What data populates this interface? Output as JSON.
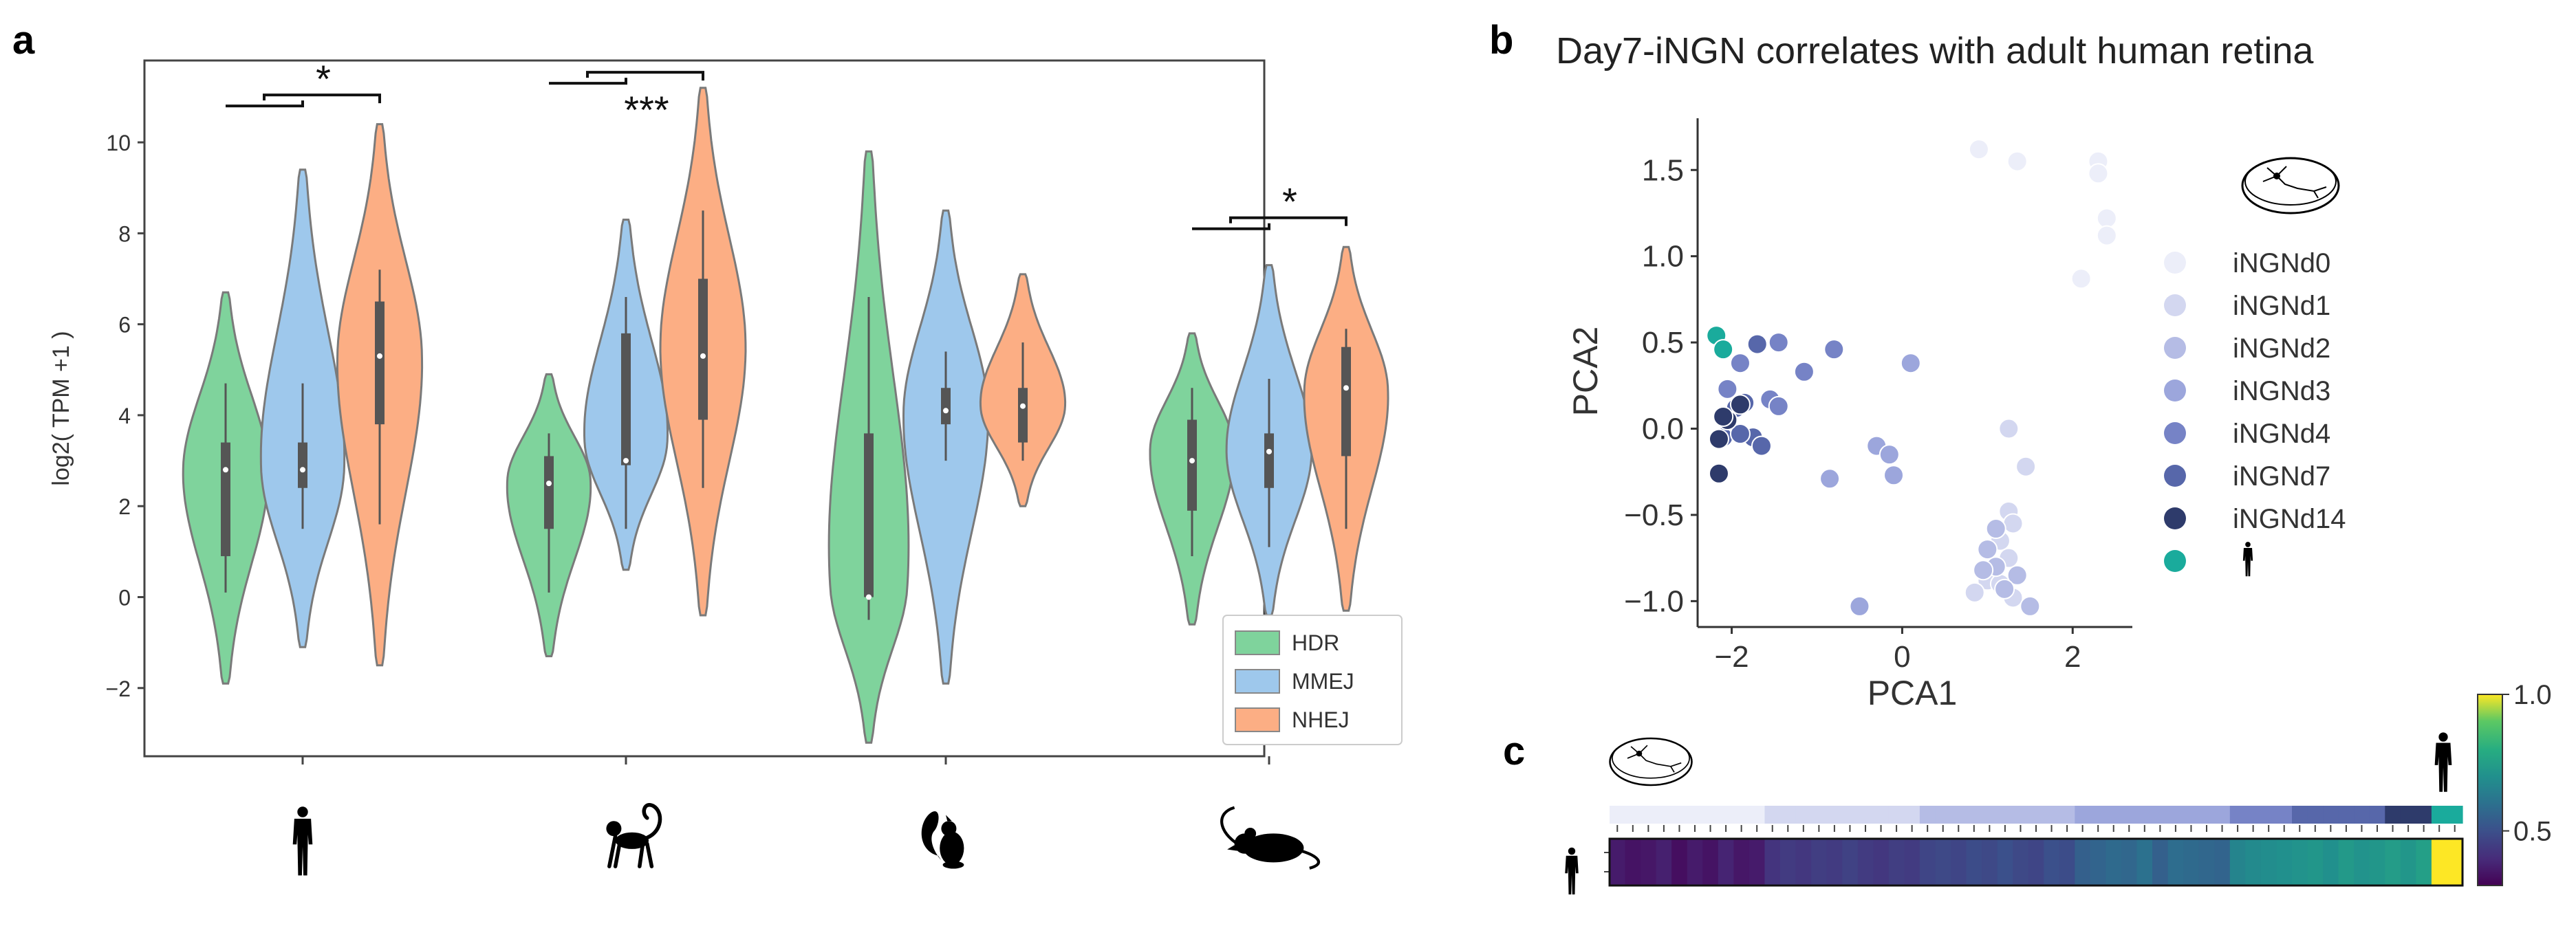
{
  "panels": {
    "a": "a",
    "b": "b",
    "c": "c"
  },
  "chart_data": [
    {
      "type": "violin",
      "panel": "a",
      "ylabel": "log2( TPM +1 )",
      "ylim": [
        -3.5,
        11.8
      ],
      "yticks": [
        -2,
        0,
        2,
        4,
        6,
        8,
        10
      ],
      "groups": [
        "human-icon",
        "monkey-icon",
        "squirrel-icon",
        "mouse-icon"
      ],
      "legend": [
        {
          "label": "HDR",
          "color": "#7fd39c"
        },
        {
          "label": "MMEJ",
          "color": "#9ec8ec"
        },
        {
          "label": "NHEJ",
          "color": "#fcae84"
        }
      ],
      "series": [
        {
          "name": "HDR",
          "values": [
            {
              "min": -1.9,
              "q1": 0.9,
              "median": 2.8,
              "q3": 3.4,
              "wlo": 0.1,
              "whi": 4.7,
              "max": 6.7,
              "mode": 2.8
            },
            {
              "min": -1.3,
              "q1": 1.5,
              "median": 2.5,
              "q3": 3.1,
              "wlo": 0.1,
              "whi": 3.6,
              "max": 4.9,
              "mode": 2.6
            },
            {
              "min": -3.2,
              "q1": 0.0,
              "median": 0.0,
              "q3": 3.6,
              "wlo": -0.5,
              "whi": 6.6,
              "max": 9.8,
              "mode": 0.2
            },
            {
              "min": -0.6,
              "q1": 1.9,
              "median": 3.0,
              "q3": 3.9,
              "wlo": 0.9,
              "whi": 4.6,
              "max": 5.8,
              "mode": 3.3
            }
          ]
        },
        {
          "name": "MMEJ",
          "values": [
            {
              "min": -1.1,
              "q1": 2.4,
              "median": 2.8,
              "q3": 3.4,
              "wlo": 1.5,
              "whi": 4.7,
              "max": 9.4,
              "mode": 2.8
            },
            {
              "min": 0.6,
              "q1": 2.9,
              "median": 3.0,
              "q3": 5.8,
              "wlo": 1.5,
              "whi": 6.6,
              "max": 8.3,
              "mode": 3.4
            },
            {
              "min": -1.9,
              "q1": 3.8,
              "median": 4.1,
              "q3": 4.6,
              "wlo": 3.0,
              "whi": 5.4,
              "max": 8.5,
              "mode": 4.1
            },
            {
              "min": -0.4,
              "q1": 2.4,
              "median": 3.2,
              "q3": 3.6,
              "wlo": 1.1,
              "whi": 4.8,
              "max": 7.3,
              "mode": 3.2
            }
          ]
        },
        {
          "name": "NHEJ",
          "values": [
            {
              "min": -1.5,
              "q1": 3.8,
              "median": 5.3,
              "q3": 6.5,
              "wlo": 1.6,
              "whi": 7.2,
              "max": 10.4,
              "mode": 5.3
            },
            {
              "min": -0.4,
              "q1": 3.9,
              "median": 5.3,
              "q3": 7.0,
              "wlo": 2.4,
              "whi": 8.5,
              "max": 11.2,
              "mode": 5.5
            },
            {
              "min": 2.0,
              "q1": 3.4,
              "median": 4.2,
              "q3": 4.6,
              "wlo": 3.0,
              "whi": 5.6,
              "max": 7.1,
              "mode": 4.2
            },
            {
              "min": -0.3,
              "q1": 3.1,
              "median": 4.6,
              "q3": 5.5,
              "wlo": 1.5,
              "whi": 5.9,
              "max": 7.7,
              "mode": 4.6
            }
          ]
        }
      ],
      "significance": [
        {
          "group": 0,
          "label": "*",
          "y": 10.8
        },
        {
          "group": 1,
          "label": "***",
          "y": 11.3
        },
        {
          "group": 3,
          "label": "*",
          "y": 8.1
        }
      ]
    },
    {
      "type": "scatter",
      "panel": "b",
      "title": "Day7-iNGN correlates with adult human retina",
      "xlabel": "PCA1",
      "ylabel": "PCA2",
      "xlim": [
        -2.4,
        2.7
      ],
      "ylim": [
        -1.15,
        1.8
      ],
      "xticks": [
        -2,
        0,
        2
      ],
      "yticks": [
        -1.0,
        -0.5,
        0.0,
        0.5,
        1.0,
        1.5
      ],
      "legend_icon": "dish-icon",
      "series": [
        {
          "name": "iNGNd0",
          "color": "#eceef9",
          "points": [
            [
              0.9,
              1.62
            ],
            [
              1.35,
              1.55
            ],
            [
              2.3,
              1.55
            ],
            [
              2.3,
              1.48
            ],
            [
              2.4,
              1.22
            ],
            [
              2.4,
              1.12
            ],
            [
              2.1,
              0.87
            ]
          ]
        },
        {
          "name": "iNGNd1",
          "color": "#d3d7f0",
          "points": [
            [
              1.25,
              -0.48
            ],
            [
              1.3,
              -0.55
            ],
            [
              1.15,
              -0.65
            ],
            [
              1.25,
              -0.75
            ],
            [
              1.0,
              -0.88
            ],
            [
              1.15,
              -0.9
            ],
            [
              0.85,
              -0.95
            ],
            [
              1.3,
              -0.98
            ],
            [
              1.45,
              -0.22
            ],
            [
              1.25,
              0.0
            ]
          ]
        },
        {
          "name": "iNGNd2",
          "color": "#b5bce5",
          "points": [
            [
              1.1,
              -0.58
            ],
            [
              1.0,
              -0.7
            ],
            [
              1.1,
              -0.8
            ],
            [
              1.35,
              -0.85
            ],
            [
              1.2,
              -0.93
            ],
            [
              1.5,
              -1.03
            ],
            [
              0.95,
              -0.82
            ]
          ]
        },
        {
          "name": "iNGNd3",
          "color": "#9ca6dc",
          "points": [
            [
              -0.3,
              -0.1
            ],
            [
              -0.15,
              -0.15
            ],
            [
              -0.1,
              -0.27
            ],
            [
              -0.5,
              -1.03
            ],
            [
              -0.85,
              -0.29
            ],
            [
              0.1,
              0.38
            ]
          ]
        },
        {
          "name": "iNGNd4",
          "color": "#7683c6",
          "points": [
            [
              -0.8,
              0.46
            ],
            [
              -1.15,
              0.33
            ],
            [
              -1.45,
              0.5
            ],
            [
              -1.55,
              0.17
            ],
            [
              -1.45,
              0.13
            ],
            [
              -1.9,
              0.38
            ],
            [
              -2.05,
              0.23
            ]
          ]
        },
        {
          "name": "iNGNd7",
          "color": "#5767aa",
          "points": [
            [
              -1.7,
              0.49
            ],
            [
              -1.85,
              0.15
            ],
            [
              -1.75,
              -0.05
            ],
            [
              -1.65,
              -0.1
            ],
            [
              -1.95,
              0.12
            ],
            [
              -2.1,
              -0.05
            ],
            [
              -1.9,
              -0.03
            ]
          ]
        },
        {
          "name": "iNGNd14",
          "color": "#2e3b6b",
          "points": [
            [
              -2.05,
              0.05
            ],
            [
              -1.9,
              0.14
            ],
            [
              -2.15,
              -0.26
            ],
            [
              -2.1,
              0.07
            ],
            [
              -2.15,
              -0.06
            ]
          ]
        },
        {
          "name": "",
          "icon": "human-icon",
          "color": "#1aab9c",
          "points": [
            [
              -2.18,
              0.54
            ],
            [
              -2.1,
              0.46
            ]
          ]
        }
      ]
    },
    {
      "type": "heatmap",
      "panel": "c",
      "colorbar": {
        "ticks": [
          1.0,
          0.5
        ],
        "tick_labels": [
          "1.0",
          "0.5"
        ],
        "range": [
          0.3,
          1.0
        ]
      },
      "left_icon": "dish-icon",
      "right_icon": "human-icon",
      "row_icon": "human-icon",
      "group_bar_colors": [
        "#eceef9",
        "#eceef9",
        "#eceef9",
        "#eceef9",
        "#eceef9",
        "#eceef9",
        "#eceef9",
        "#eceef9",
        "#eceef9",
        "#eceef9",
        "#d3d7f0",
        "#d3d7f0",
        "#d3d7f0",
        "#d3d7f0",
        "#d3d7f0",
        "#d3d7f0",
        "#d3d7f0",
        "#d3d7f0",
        "#d3d7f0",
        "#d3d7f0",
        "#b5bce5",
        "#b5bce5",
        "#b5bce5",
        "#b5bce5",
        "#b5bce5",
        "#b5bce5",
        "#b5bce5",
        "#b5bce5",
        "#b5bce5",
        "#b5bce5",
        "#9ca6dc",
        "#9ca6dc",
        "#9ca6dc",
        "#9ca6dc",
        "#9ca6dc",
        "#9ca6dc",
        "#9ca6dc",
        "#9ca6dc",
        "#9ca6dc",
        "#9ca6dc",
        "#7683c6",
        "#7683c6",
        "#7683c6",
        "#7683c6",
        "#5767aa",
        "#5767aa",
        "#5767aa",
        "#5767aa",
        "#5767aa",
        "#5767aa",
        "#2e3b6b",
        "#2e3b6b",
        "#2e3b6b",
        "#1aab9c",
        "#1aab9c"
      ],
      "values": [
        0.36,
        0.34,
        0.35,
        0.37,
        0.33,
        0.36,
        0.34,
        0.38,
        0.35,
        0.36,
        0.42,
        0.44,
        0.43,
        0.45,
        0.44,
        0.46,
        0.44,
        0.43,
        0.45,
        0.44,
        0.47,
        0.48,
        0.47,
        0.49,
        0.48,
        0.5,
        0.48,
        0.47,
        0.5,
        0.49,
        0.55,
        0.56,
        0.58,
        0.57,
        0.6,
        0.55,
        0.59,
        0.58,
        0.57,
        0.56,
        0.66,
        0.68,
        0.69,
        0.7,
        0.71,
        0.72,
        0.7,
        0.73,
        0.71,
        0.72,
        0.74,
        0.72,
        0.75,
        1.0,
        1.0
      ]
    }
  ]
}
